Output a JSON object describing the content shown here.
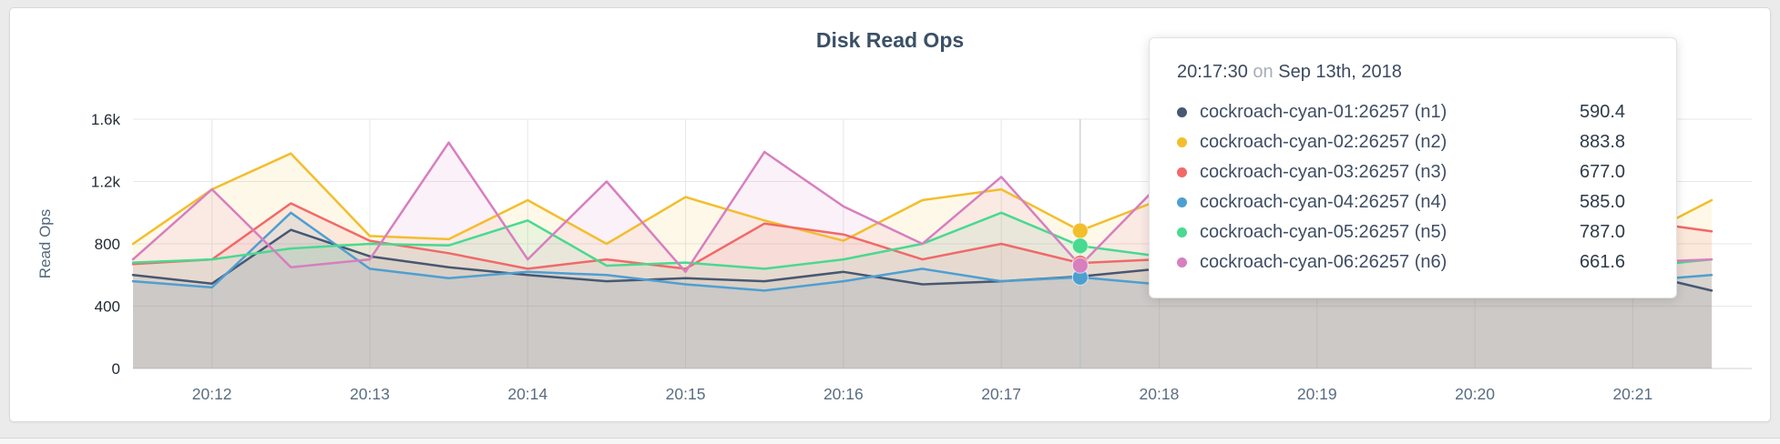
{
  "page": {
    "background": "#ebebeb"
  },
  "chart_data": {
    "type": "line",
    "title": "Disk Read Ops",
    "xlabel": "",
    "ylabel": "Read Ops",
    "ylim": [
      0,
      1600
    ],
    "grid": true,
    "legend_position": "tooltip",
    "yticks": [
      {
        "v": 0,
        "label": "0"
      },
      {
        "v": 400,
        "label": "400"
      },
      {
        "v": 800,
        "label": "800"
      },
      {
        "v": 1200,
        "label": "1.2k"
      },
      {
        "v": 1600,
        "label": "1.6k"
      }
    ],
    "xticks": [
      {
        "t": "20:12:00",
        "label": "20:12"
      },
      {
        "t": "20:13:00",
        "label": "20:13"
      },
      {
        "t": "20:14:00",
        "label": "20:14"
      },
      {
        "t": "20:15:00",
        "label": "20:15"
      },
      {
        "t": "20:16:00",
        "label": "20:16"
      },
      {
        "t": "20:17:00",
        "label": "20:17"
      },
      {
        "t": "20:18:00",
        "label": "20:18"
      },
      {
        "t": "20:19:00",
        "label": "20:19"
      },
      {
        "t": "20:20:00",
        "label": "20:20"
      },
      {
        "t": "20:21:00",
        "label": "20:21"
      }
    ],
    "x": [
      "20:11:30",
      "20:12:00",
      "20:12:30",
      "20:13:00",
      "20:13:30",
      "20:14:00",
      "20:14:30",
      "20:15:00",
      "20:15:30",
      "20:16:00",
      "20:16:30",
      "20:17:00",
      "20:17:30",
      "20:18:00",
      "20:18:30",
      "20:19:00",
      "20:19:30",
      "20:20:00",
      "20:20:30",
      "20:21:00",
      "20:21:30"
    ],
    "series": [
      {
        "name": "cockroach-cyan-01:26257 (n1)",
        "color": "#475872",
        "values": [
          600,
          545,
          890,
          720,
          650,
          600,
          560,
          580,
          560,
          620,
          540,
          560,
          590.4,
          640,
          560,
          580,
          540,
          560,
          600,
          620,
          500
        ]
      },
      {
        "name": "cockroach-cyan-02:26257 (n2)",
        "color": "#F2BE2C",
        "values": [
          800,
          1150,
          1380,
          850,
          830,
          1080,
          800,
          1100,
          950,
          820,
          1080,
          1150,
          883.8,
          1080,
          860,
          900,
          840,
          880,
          820,
          820,
          1080
        ]
      },
      {
        "name": "cockroach-cyan-03:26257 (n3)",
        "color": "#F16969",
        "values": [
          670,
          700,
          1060,
          820,
          740,
          640,
          700,
          640,
          930,
          860,
          700,
          800,
          677,
          700,
          650,
          680,
          720,
          690,
          660,
          950,
          880
        ]
      },
      {
        "name": "cockroach-cyan-04:26257 (n4)",
        "color": "#4E9FD1",
        "values": [
          560,
          520,
          1000,
          640,
          580,
          620,
          600,
          540,
          500,
          560,
          640,
          560,
          585,
          540,
          560,
          520,
          560,
          540,
          520,
          560,
          600
        ]
      },
      {
        "name": "cockroach-cyan-05:26257 (n5)",
        "color": "#49D990",
        "values": [
          680,
          700,
          770,
          800,
          790,
          950,
          660,
          680,
          640,
          700,
          800,
          1000,
          787,
          720,
          700,
          680,
          720,
          700,
          680,
          650,
          700
        ]
      },
      {
        "name": "cockroach-cyan-06:26257 (n6)",
        "color": "#D77FBF",
        "values": [
          700,
          1150,
          650,
          700,
          1450,
          700,
          1200,
          620,
          1390,
          1040,
          800,
          1230,
          661.6,
          1180,
          700,
          720,
          680,
          700,
          720,
          680,
          700
        ]
      }
    ]
  },
  "tooltip": {
    "time": "20:17:30",
    "on_word": "on",
    "date": "Sep 13th, 2018",
    "rows": [
      {
        "name": "cockroach-cyan-01:26257 (n1)",
        "value": "590.4",
        "color": "#475872"
      },
      {
        "name": "cockroach-cyan-02:26257 (n2)",
        "value": "883.8",
        "color": "#F2BE2C"
      },
      {
        "name": "cockroach-cyan-03:26257 (n3)",
        "value": "677.0",
        "color": "#F16969"
      },
      {
        "name": "cockroach-cyan-04:26257 (n4)",
        "value": "585.0",
        "color": "#4E9FD1"
      },
      {
        "name": "cockroach-cyan-05:26257 (n5)",
        "value": "787.0",
        "color": "#49D990"
      },
      {
        "name": "cockroach-cyan-06:26257 (n6)",
        "value": "661.6",
        "color": "#D77FBF"
      }
    ]
  }
}
